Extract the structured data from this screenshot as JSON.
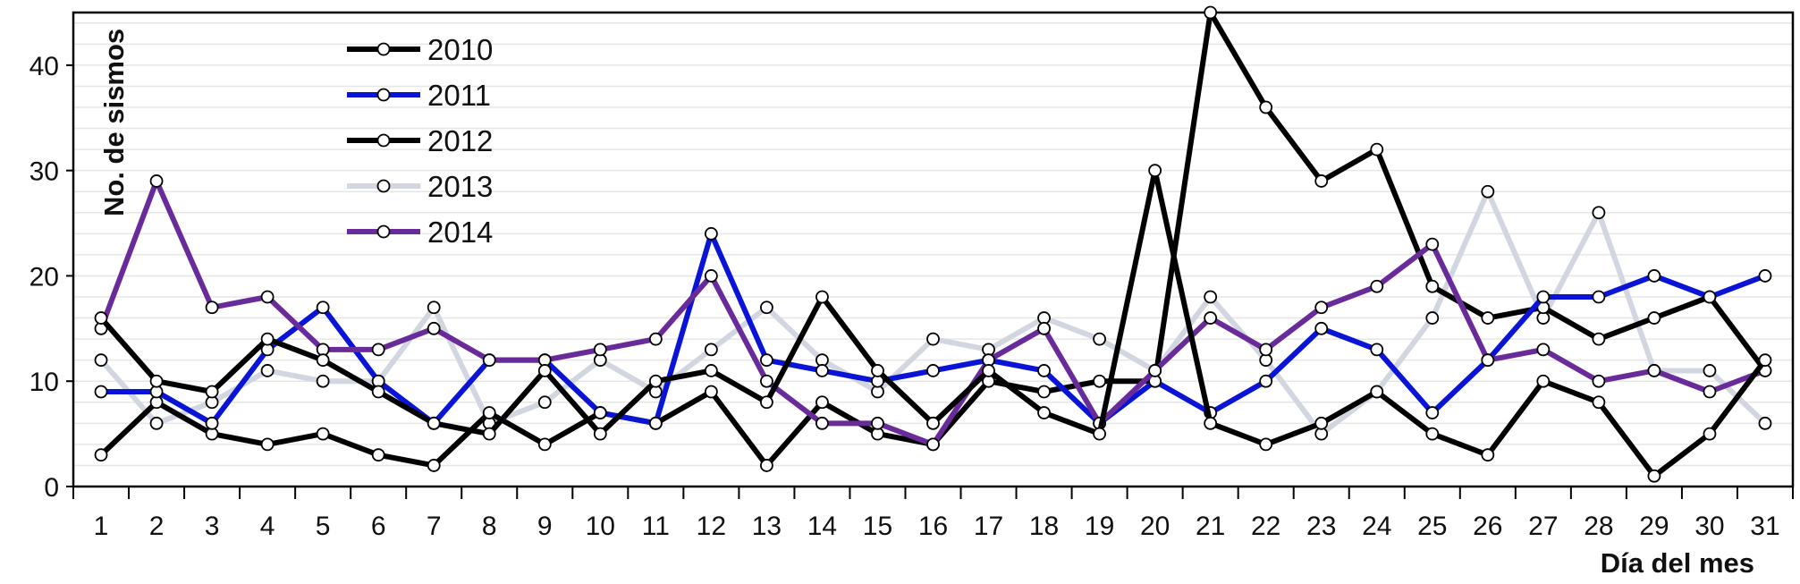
{
  "chart_data": {
    "type": "line",
    "xlabel": "Día del mes",
    "ylabel": "No. de sismos",
    "ylim": [
      0,
      45
    ],
    "xlim": [
      0.5,
      31.5
    ],
    "yticks": [
      0,
      10,
      20,
      30,
      40
    ],
    "grid": "horizontal",
    "legend_position": "top-left",
    "x": [
      1,
      2,
      3,
      4,
      5,
      6,
      7,
      8,
      9,
      10,
      11,
      12,
      13,
      14,
      15,
      16,
      17,
      18,
      19,
      20,
      21,
      22,
      23,
      24,
      25,
      26,
      27,
      28,
      29,
      30,
      31
    ],
    "series": [
      {
        "name": "2010",
        "color": "#000000",
        "values": [
          3,
          8,
          5,
          4,
          5,
          3,
          2,
          7,
          4,
          7,
          6,
          9,
          2,
          8,
          5,
          4,
          10,
          9,
          10,
          10,
          45,
          36,
          29,
          32,
          19,
          16,
          17,
          14,
          16,
          18,
          11
        ]
      },
      {
        "name": "2011",
        "color": "#0a14d6",
        "values": [
          9,
          9,
          6,
          13,
          17,
          10,
          6,
          12,
          12,
          7,
          6,
          24,
          12,
          11,
          10,
          11,
          12,
          11,
          6,
          10,
          7,
          10,
          15,
          13,
          7,
          12,
          18,
          18,
          20,
          18,
          20
        ]
      },
      {
        "name": "2012",
        "color": "#000000",
        "values": [
          16,
          10,
          9,
          14,
          12,
          9,
          6,
          5,
          11,
          5,
          10,
          11,
          8,
          18,
          11,
          6,
          11,
          7,
          5,
          30,
          6,
          4,
          6,
          9,
          5,
          3,
          10,
          8,
          1,
          5,
          12
        ]
      },
      {
        "name": "2013",
        "color": "#d2d6e0",
        "values": [
          12,
          6,
          8,
          11,
          10,
          10,
          17,
          6,
          8,
          12,
          9,
          13,
          17,
          12,
          9,
          14,
          13,
          16,
          14,
          11,
          18,
          12,
          5,
          9,
          16,
          28,
          16,
          26,
          11,
          11,
          6
        ]
      },
      {
        "name": "2014",
        "color": "#6a2b9a",
        "values": [
          15,
          29,
          17,
          18,
          13,
          13,
          15,
          12,
          12,
          13,
          14,
          20,
          10,
          6,
          6,
          4,
          12,
          15,
          6,
          11,
          16,
          13,
          17,
          19,
          23,
          12,
          13,
          10,
          11,
          9,
          11
        ]
      }
    ]
  }
}
